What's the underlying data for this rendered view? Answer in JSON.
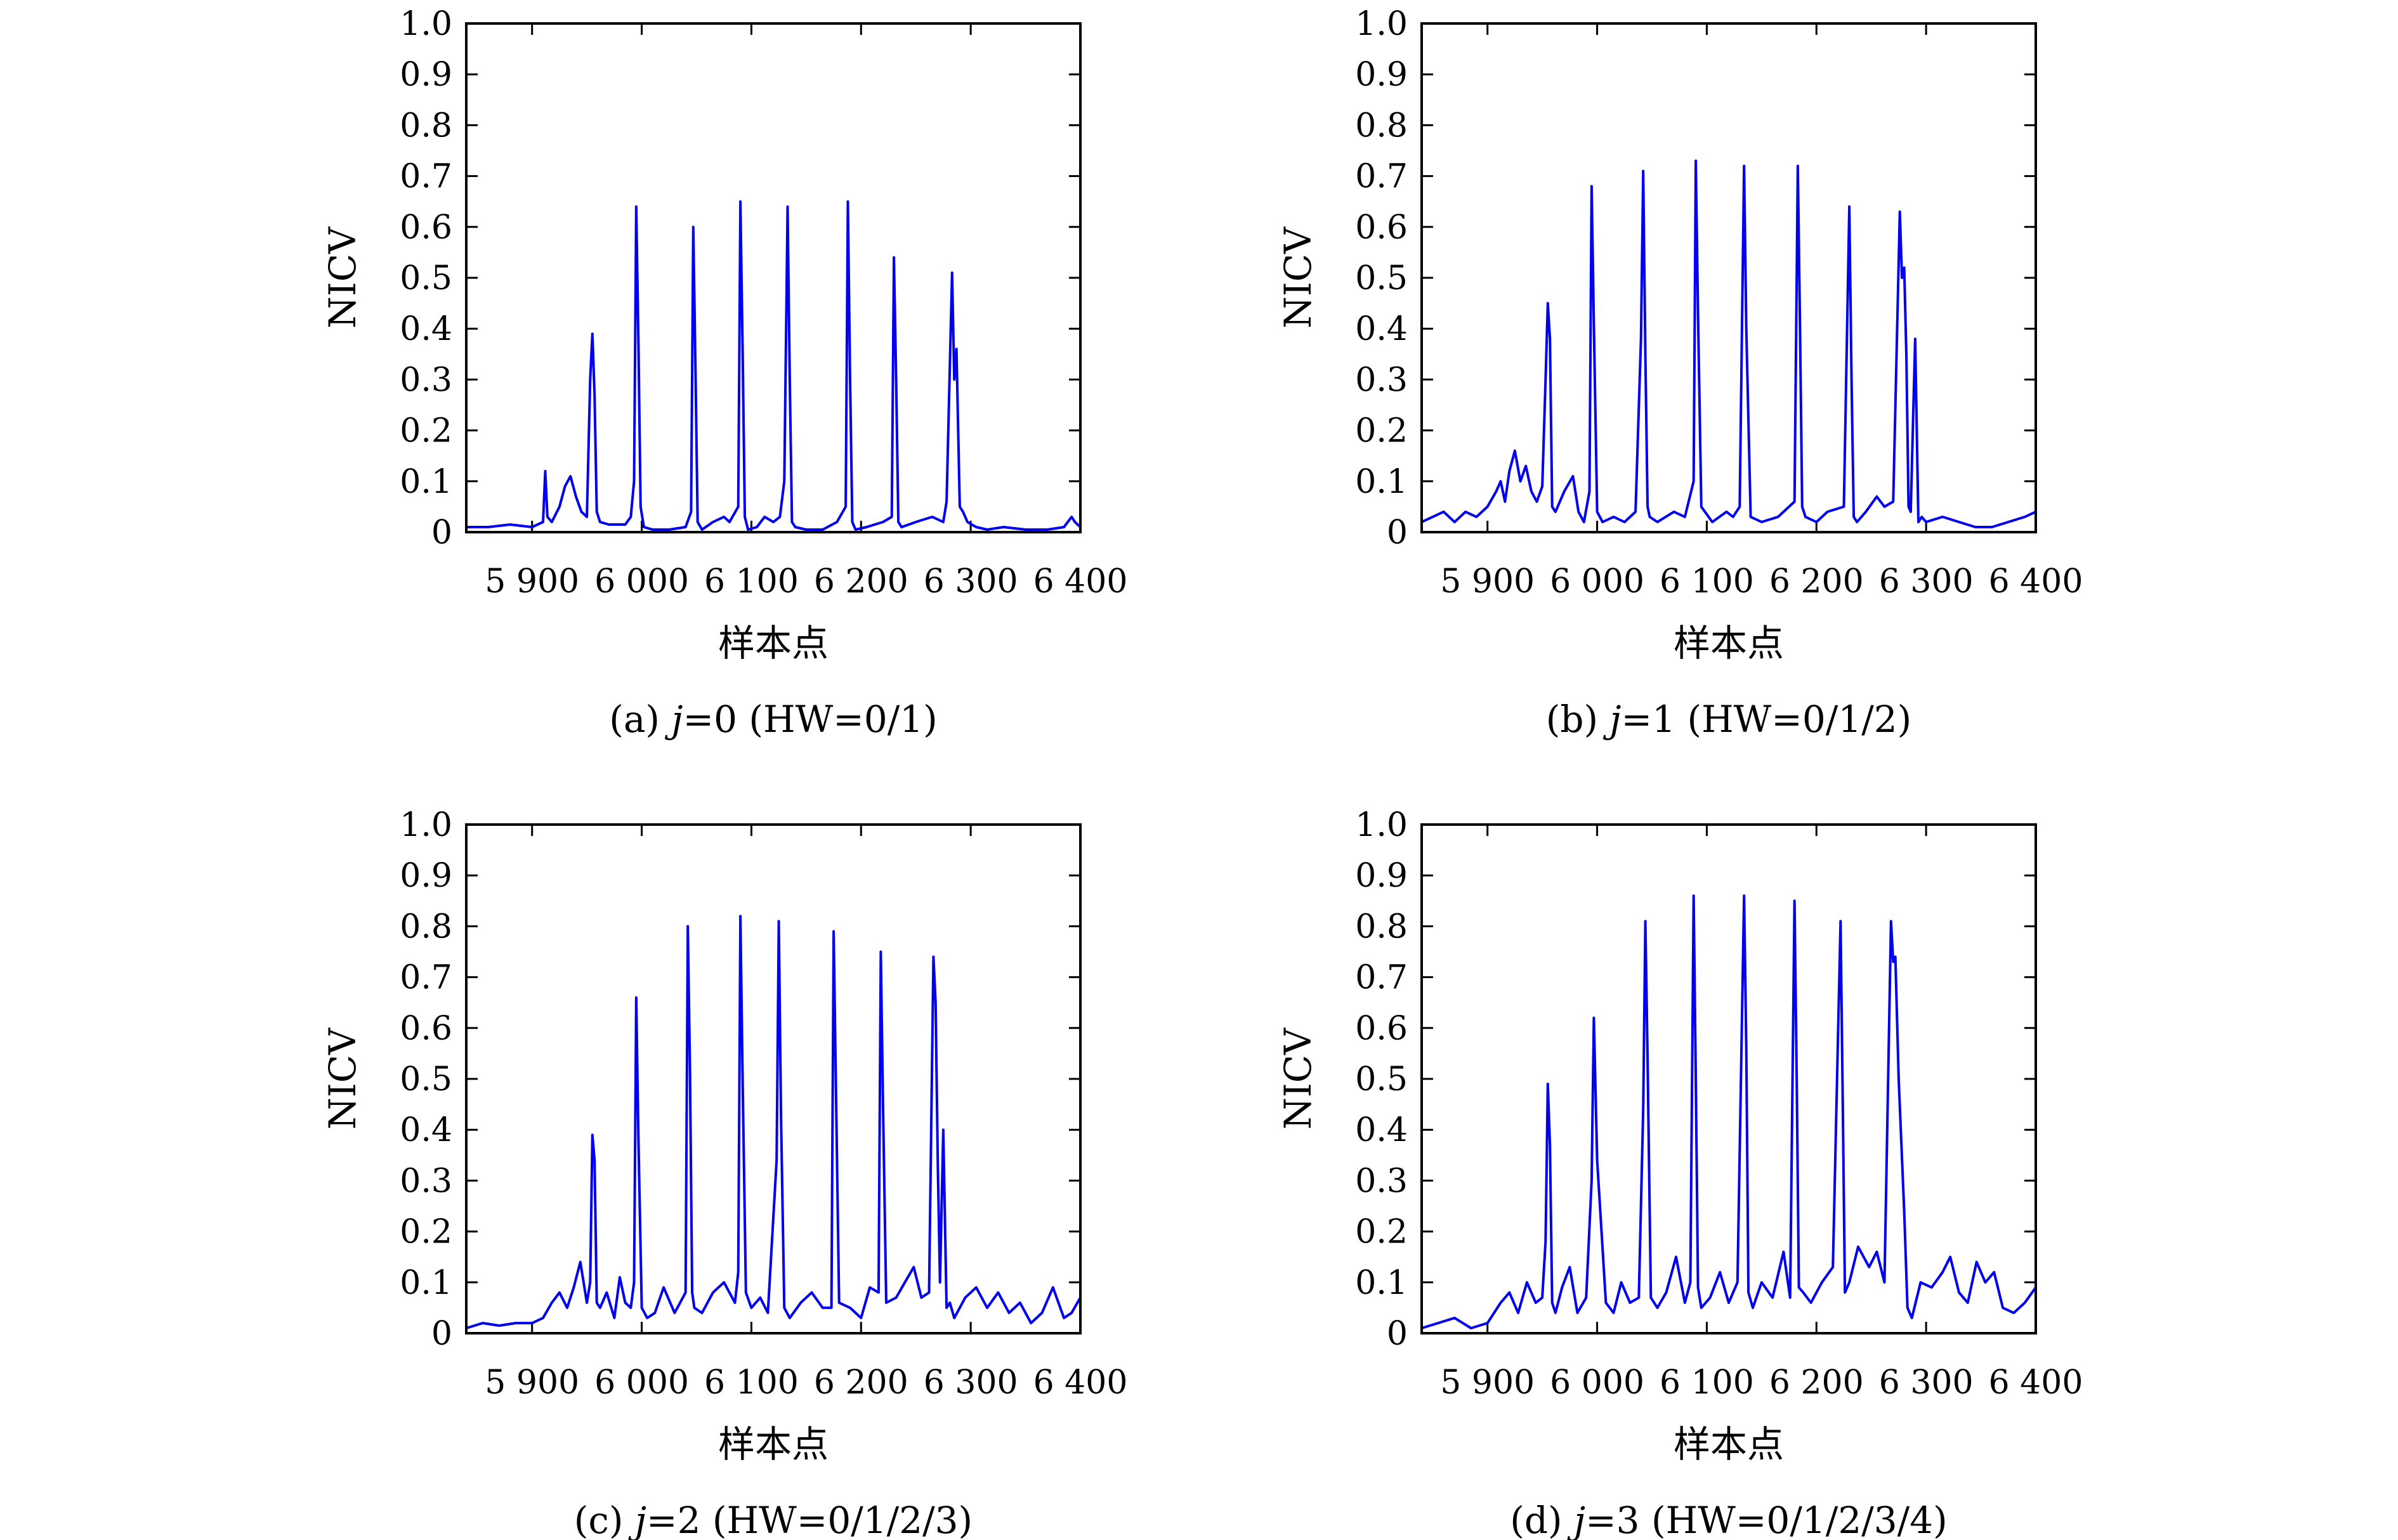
{
  "figure": {
    "series_color": "#0000ee",
    "panels_caption": [
      "(a) ",
      "(b) ",
      "(c) ",
      "(d) "
    ]
  },
  "chart_data": [
    {
      "type": "line",
      "caption_prefix": "(a) ",
      "caption_var": "j",
      "caption_rest": "=0 (HW=0/1)",
      "xlabel": "样本点",
      "ylabel": "NICV",
      "xlim": [
        5840,
        6400
      ],
      "ylim": [
        0,
        1.0
      ],
      "xticks": [
        5900,
        6000,
        6100,
        6200,
        6300,
        6400
      ],
      "xtick_labels": [
        "5 900",
        "6 000",
        "6 100",
        "6 200",
        "6 300",
        "6 400"
      ],
      "yticks": [
        0,
        0.1,
        0.2,
        0.3,
        0.4,
        0.5,
        0.6,
        0.7,
        0.8,
        0.9,
        1.0
      ],
      "ytick_labels": [
        "0",
        "0.1",
        "0.2",
        "0.3",
        "0.4",
        "0.5",
        "0.6",
        "0.7",
        "0.8",
        "0.9",
        "1.0"
      ],
      "series": [
        {
          "x": [
            5840,
            5860,
            5880,
            5900,
            5910,
            5912,
            5914,
            5918,
            5925,
            5930,
            5935,
            5940,
            5945,
            5950,
            5953,
            5955,
            5957,
            5959,
            5962,
            5970,
            5985,
            5990,
            5993,
            5995,
            5997,
            5999,
            6002,
            6010,
            6025,
            6040,
            6045,
            6047,
            6049,
            6051,
            6055,
            6065,
            6075,
            6080,
            6088,
            6090,
            6092,
            6094,
            6097,
            6105,
            6112,
            6120,
            6126,
            6130,
            6133,
            6135,
            6137,
            6140,
            6150,
            6165,
            6178,
            6186,
            6188,
            6190,
            6192,
            6195,
            6205,
            6220,
            6228,
            6230,
            6232,
            6234,
            6237,
            6250,
            6265,
            6275,
            6278,
            6283,
            6285,
            6287,
            6290,
            6293,
            6297,
            6305,
            6315,
            6330,
            6350,
            6370,
            6385,
            6392,
            6395,
            6400
          ],
          "y": [
            0.01,
            0.01,
            0.015,
            0.01,
            0.02,
            0.12,
            0.03,
            0.02,
            0.05,
            0.09,
            0.11,
            0.07,
            0.04,
            0.03,
            0.3,
            0.39,
            0.27,
            0.04,
            0.02,
            0.015,
            0.015,
            0.03,
            0.1,
            0.64,
            0.37,
            0.05,
            0.01,
            0.005,
            0.005,
            0.01,
            0.04,
            0.6,
            0.32,
            0.02,
            0.005,
            0.02,
            0.03,
            0.02,
            0.05,
            0.65,
            0.36,
            0.03,
            0.005,
            0.01,
            0.03,
            0.02,
            0.03,
            0.1,
            0.64,
            0.3,
            0.02,
            0.01,
            0.005,
            0.005,
            0.02,
            0.05,
            0.65,
            0.3,
            0.02,
            0.005,
            0.01,
            0.02,
            0.03,
            0.54,
            0.3,
            0.02,
            0.01,
            0.02,
            0.03,
            0.02,
            0.06,
            0.51,
            0.3,
            0.36,
            0.05,
            0.04,
            0.02,
            0.01,
            0.005,
            0.01,
            0.005,
            0.005,
            0.01,
            0.03,
            0.02,
            0.01
          ]
        }
      ]
    },
    {
      "type": "line",
      "caption_prefix": "(b) ",
      "caption_var": "j",
      "caption_rest": "=1 (HW=0/1/2)",
      "xlabel": "样本点",
      "ylabel": "NICV",
      "xlim": [
        5840,
        6400
      ],
      "ylim": [
        0,
        1.0
      ],
      "xticks": [
        5900,
        6000,
        6100,
        6200,
        6300,
        6400
      ],
      "xtick_labels": [
        "5 900",
        "6 000",
        "6 100",
        "6 200",
        "6 300",
        "6 400"
      ],
      "yticks": [
        0,
        0.1,
        0.2,
        0.3,
        0.4,
        0.5,
        0.6,
        0.7,
        0.8,
        0.9,
        1.0
      ],
      "ytick_labels": [
        "0",
        "0.1",
        "0.2",
        "0.3",
        "0.4",
        "0.5",
        "0.6",
        "0.7",
        "0.8",
        "0.9",
        "1.0"
      ],
      "series": [
        {
          "x": [
            5840,
            5850,
            5860,
            5870,
            5880,
            5890,
            5900,
            5908,
            5912,
            5916,
            5920,
            5925,
            5930,
            5935,
            5940,
            5945,
            5950,
            5953,
            5955,
            5957,
            5959,
            5962,
            5970,
            5978,
            5983,
            5988,
            5993,
            5995,
            5997,
            6000,
            6005,
            6015,
            6025,
            6035,
            6040,
            6042,
            6044,
            6046,
            6048,
            6055,
            6070,
            6080,
            6088,
            6090,
            6092,
            6095,
            6105,
            6118,
            6124,
            6130,
            6134,
            6136,
            6140,
            6150,
            6165,
            6175,
            6180,
            6183,
            6185,
            6187,
            6190,
            6200,
            6210,
            6225,
            6230,
            6232,
            6234,
            6237,
            6245,
            6255,
            6262,
            6270,
            6276,
            6278,
            6280,
            6282,
            6284,
            6286,
            6290,
            6293,
            6296,
            6300,
            6315,
            6330,
            6345,
            6360,
            6375,
            6390,
            6400
          ],
          "y": [
            0.02,
            0.03,
            0.04,
            0.02,
            0.04,
            0.03,
            0.05,
            0.08,
            0.1,
            0.06,
            0.12,
            0.16,
            0.1,
            0.13,
            0.08,
            0.06,
            0.09,
            0.3,
            0.45,
            0.38,
            0.05,
            0.04,
            0.08,
            0.11,
            0.04,
            0.02,
            0.08,
            0.68,
            0.41,
            0.04,
            0.02,
            0.03,
            0.02,
            0.04,
            0.38,
            0.71,
            0.35,
            0.05,
            0.03,
            0.02,
            0.04,
            0.03,
            0.1,
            0.73,
            0.43,
            0.05,
            0.02,
            0.04,
            0.03,
            0.05,
            0.72,
            0.4,
            0.03,
            0.02,
            0.03,
            0.05,
            0.06,
            0.72,
            0.4,
            0.05,
            0.03,
            0.02,
            0.04,
            0.05,
            0.64,
            0.3,
            0.03,
            0.02,
            0.04,
            0.07,
            0.05,
            0.06,
            0.63,
            0.5,
            0.52,
            0.35,
            0.05,
            0.04,
            0.38,
            0.02,
            0.03,
            0.02,
            0.03,
            0.02,
            0.01,
            0.01,
            0.02,
            0.03,
            0.04
          ]
        }
      ]
    },
    {
      "type": "line",
      "caption_prefix": "(c) ",
      "caption_var": "j",
      "caption_rest": "=2 (HW=0/1/2/3)",
      "xlabel": "样本点",
      "ylabel": "NICV",
      "xlim": [
        5840,
        6400
      ],
      "ylim": [
        0,
        1.0
      ],
      "xticks": [
        5900,
        6000,
        6100,
        6200,
        6300,
        6400
      ],
      "xtick_labels": [
        "5 900",
        "6 000",
        "6 100",
        "6 200",
        "6 300",
        "6 400"
      ],
      "yticks": [
        0,
        0.1,
        0.2,
        0.3,
        0.4,
        0.5,
        0.6,
        0.7,
        0.8,
        0.9,
        1.0
      ],
      "ytick_labels": [
        "0",
        "0.1",
        "0.2",
        "0.3",
        "0.4",
        "0.5",
        "0.6",
        "0.7",
        "0.8",
        "0.9",
        "1.0"
      ],
      "series": [
        {
          "x": [
            5840,
            5855,
            5870,
            5885,
            5900,
            5910,
            5918,
            5925,
            5932,
            5938,
            5944,
            5950,
            5953,
            5955,
            5957,
            5959,
            5962,
            5968,
            5975,
            5980,
            5985,
            5990,
            5993,
            5995,
            5997,
            6000,
            6005,
            6012,
            6020,
            6030,
            6040,
            6042,
            6044,
            6046,
            6048,
            6055,
            6065,
            6075,
            6085,
            6088,
            6090,
            6092,
            6095,
            6100,
            6108,
            6115,
            6123,
            6125,
            6127,
            6130,
            6135,
            6145,
            6155,
            6165,
            6173,
            6175,
            6177,
            6180,
            6190,
            6200,
            6208,
            6216,
            6218,
            6220,
            6223,
            6232,
            6240,
            6248,
            6255,
            6262,
            6266,
            6268,
            6270,
            6272,
            6275,
            6278,
            6281,
            6285,
            6295,
            6305,
            6315,
            6325,
            6335,
            6345,
            6355,
            6365,
            6375,
            6385,
            6392,
            6400
          ],
          "y": [
            0.01,
            0.02,
            0.015,
            0.02,
            0.02,
            0.03,
            0.06,
            0.08,
            0.05,
            0.09,
            0.14,
            0.06,
            0.1,
            0.39,
            0.34,
            0.06,
            0.05,
            0.08,
            0.03,
            0.11,
            0.06,
            0.05,
            0.1,
            0.66,
            0.38,
            0.05,
            0.03,
            0.04,
            0.09,
            0.04,
            0.08,
            0.8,
            0.52,
            0.08,
            0.05,
            0.04,
            0.08,
            0.1,
            0.06,
            0.12,
            0.82,
            0.5,
            0.08,
            0.05,
            0.07,
            0.04,
            0.34,
            0.81,
            0.43,
            0.05,
            0.03,
            0.06,
            0.08,
            0.05,
            0.05,
            0.79,
            0.5,
            0.06,
            0.05,
            0.03,
            0.09,
            0.08,
            0.75,
            0.45,
            0.06,
            0.07,
            0.1,
            0.13,
            0.07,
            0.08,
            0.74,
            0.65,
            0.33,
            0.1,
            0.4,
            0.05,
            0.06,
            0.03,
            0.07,
            0.09,
            0.05,
            0.08,
            0.04,
            0.06,
            0.02,
            0.04,
            0.09,
            0.03,
            0.04,
            0.07
          ]
        }
      ]
    },
    {
      "type": "line",
      "caption_prefix": "(d) ",
      "caption_var": "j",
      "caption_rest": "=3 (HW=0/1/2/3/4)",
      "xlabel": "样本点",
      "ylabel": "NICV",
      "xlim": [
        5840,
        6400
      ],
      "ylim": [
        0,
        1.0
      ],
      "xticks": [
        5900,
        6000,
        6100,
        6200,
        6300,
        6400
      ],
      "xtick_labels": [
        "5 900",
        "6 000",
        "6 100",
        "6 200",
        "6 300",
        "6 400"
      ],
      "yticks": [
        0,
        0.1,
        0.2,
        0.3,
        0.4,
        0.5,
        0.6,
        0.7,
        0.8,
        0.9,
        1.0
      ],
      "ytick_labels": [
        "0",
        "0.1",
        "0.2",
        "0.3",
        "0.4",
        "0.5",
        "0.6",
        "0.7",
        "0.8",
        "0.9",
        "1.0"
      ],
      "series": [
        {
          "x": [
            5840,
            5855,
            5870,
            5885,
            5900,
            5912,
            5920,
            5928,
            5936,
            5944,
            5950,
            5953,
            5955,
            5957,
            5959,
            5962,
            5968,
            5975,
            5982,
            5990,
            5995,
            5997,
            6000,
            6008,
            6015,
            6022,
            6030,
            6038,
            6042,
            6044,
            6046,
            6049,
            6055,
            6063,
            6072,
            6080,
            6085,
            6088,
            6090,
            6092,
            6095,
            6103,
            6112,
            6120,
            6128,
            6134,
            6136,
            6138,
            6142,
            6150,
            6160,
            6170,
            6176,
            6180,
            6182,
            6184,
            6188,
            6195,
            6205,
            6215,
            6222,
            6224,
            6226,
            6230,
            6238,
            6248,
            6255,
            6262,
            6268,
            6270,
            6272,
            6275,
            6280,
            6283,
            6287,
            6295,
            6305,
            6315,
            6322,
            6330,
            6338,
            6346,
            6354,
            6362,
            6370,
            6380,
            6390,
            6400
          ],
          "y": [
            0.01,
            0.02,
            0.03,
            0.01,
            0.02,
            0.06,
            0.08,
            0.04,
            0.1,
            0.06,
            0.07,
            0.18,
            0.49,
            0.37,
            0.06,
            0.04,
            0.09,
            0.13,
            0.04,
            0.07,
            0.3,
            0.62,
            0.34,
            0.06,
            0.04,
            0.1,
            0.06,
            0.07,
            0.44,
            0.81,
            0.54,
            0.07,
            0.05,
            0.08,
            0.15,
            0.06,
            0.1,
            0.86,
            0.5,
            0.09,
            0.05,
            0.07,
            0.12,
            0.06,
            0.1,
            0.86,
            0.56,
            0.08,
            0.05,
            0.1,
            0.07,
            0.16,
            0.07,
            0.85,
            0.5,
            0.09,
            0.08,
            0.06,
            0.1,
            0.13,
            0.81,
            0.45,
            0.08,
            0.1,
            0.17,
            0.13,
            0.16,
            0.1,
            0.81,
            0.73,
            0.74,
            0.5,
            0.24,
            0.05,
            0.03,
            0.1,
            0.09,
            0.12,
            0.15,
            0.08,
            0.06,
            0.14,
            0.1,
            0.12,
            0.05,
            0.04,
            0.06,
            0.09
          ]
        }
      ]
    }
  ]
}
